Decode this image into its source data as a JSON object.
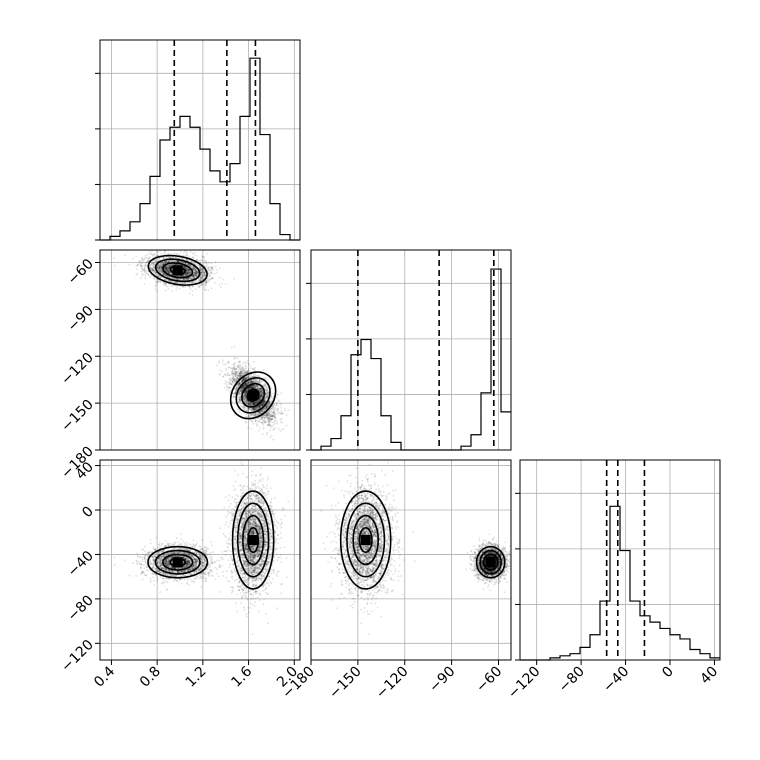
{
  "chart_data": {
    "type": "corner",
    "parameters": [
      {
        "range": [
          0.3,
          2.05
        ],
        "ticks": [
          0.4,
          0.8,
          1.2,
          1.6,
          2.0
        ],
        "tick_labels": [
          "0.4",
          "0.8",
          "1.2",
          "1.6",
          "2.0"
        ]
      },
      {
        "range": [
          -180,
          -52
        ],
        "ticks": [
          -180,
          -150,
          -120,
          -90,
          -60
        ],
        "tick_labels": [
          "−180",
          "−150",
          "−120",
          "−90",
          "−60"
        ]
      },
      {
        "range": [
          -135,
          45
        ],
        "ticks": [
          -120,
          -80,
          -40,
          0,
          40
        ],
        "tick_labels": [
          "−120",
          "−80",
          "−40",
          "0",
          "40"
        ]
      }
    ],
    "histograms": [
      {
        "param": 0,
        "edges": [
          0.3,
          0.3875,
          0.475,
          0.5625,
          0.65,
          0.7375,
          0.825,
          0.9125,
          1.0,
          1.0875,
          1.175,
          1.2625,
          1.35,
          1.4375,
          1.525,
          1.6125,
          1.7,
          1.7875,
          1.875,
          1.9625,
          2.05
        ],
        "counts": [
          0,
          2,
          5,
          10,
          20,
          35,
          55,
          62,
          68,
          62,
          50,
          38,
          32,
          42,
          68,
          100,
          58,
          20,
          3,
          0
        ],
        "ymax": 110,
        "quantiles": [
          0.95,
          1.41,
          1.66
        ]
      },
      {
        "param": 1,
        "edges": [
          -180,
          -173.6,
          -167.2,
          -160.8,
          -154.4,
          -148,
          -141.6,
          -135.2,
          -128.8,
          -122.4,
          -116,
          -109.6,
          -103.2,
          -96.8,
          -90.4,
          -84,
          -77.6,
          -71.2,
          -64.8,
          -58.4,
          -52
        ],
        "counts": [
          0,
          2,
          6,
          18,
          50,
          58,
          48,
          18,
          4,
          0,
          0,
          0,
          0,
          0,
          0,
          2,
          8,
          30,
          95,
          20
        ],
        "ymax": 105,
        "quantiles": [
          -150,
          -98,
          -63
        ]
      },
      {
        "param": 2,
        "edges": [
          -135,
          -126,
          -117,
          -108,
          -99,
          -90,
          -81,
          -72,
          -63,
          -54,
          -45,
          -36,
          -27,
          -18,
          -9,
          0,
          9,
          18,
          27,
          36,
          45
        ],
        "counts": [
          0,
          0,
          0,
          1,
          2,
          3,
          6,
          12,
          28,
          73,
          52,
          28,
          21,
          18,
          15,
          12,
          10,
          5,
          3,
          1
        ],
        "ymax": 95,
        "quantiles": [
          -57,
          -47,
          -23
        ]
      }
    ],
    "modes": [
      {
        "weight": 0.45,
        "mean": [
          0.98,
          -65,
          -47
        ],
        "sd": [
          0.13,
          4.5,
          7
        ]
      },
      {
        "weight": 0.55,
        "mean": [
          1.64,
          -145,
          -27
        ],
        "sd": [
          0.09,
          8,
          22
        ]
      }
    ],
    "scatter_seed": 7,
    "n_points": 6000,
    "grid": true,
    "contour_levels": [
      "0.5-sigma",
      "1-sigma",
      "1.5-sigma",
      "2-sigma"
    ]
  }
}
